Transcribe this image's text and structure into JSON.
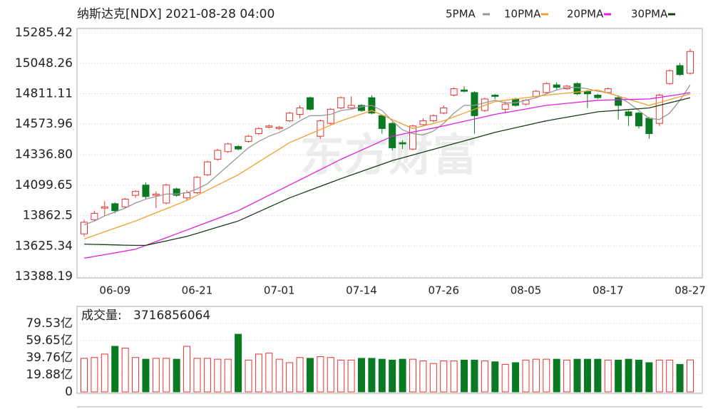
{
  "chart_data": [
    {
      "type": "candlestick",
      "title": "纳斯达克[NDX] 2021-08-28 04:00",
      "watermark": "东方财富",
      "categories": [
        null,
        null,
        null,
        "06-09",
        null,
        null,
        null,
        null,
        null,
        null,
        null,
        "06-21",
        null,
        null,
        null,
        null,
        null,
        null,
        null,
        "07-01",
        null,
        null,
        null,
        null,
        null,
        null,
        null,
        "07-14",
        null,
        null,
        null,
        null,
        null,
        null,
        null,
        "07-26",
        null,
        null,
        null,
        null,
        null,
        null,
        null,
        "08-05",
        null,
        null,
        null,
        null,
        null,
        null,
        null,
        "08-17",
        null,
        null,
        null,
        null,
        null,
        null,
        null,
        "08-27"
      ],
      "open": [
        13720,
        13830,
        13920,
        13955,
        13930,
        14020,
        14100,
        14020,
        13960,
        14070,
        14000,
        14040,
        14180,
        14300,
        14360,
        14400,
        14440,
        14500,
        14550,
        14540,
        14600,
        14650,
        14780,
        14480,
        14580,
        14700,
        14700,
        14720,
        14780,
        14640,
        14580,
        14430,
        14380,
        14570,
        14600,
        14660,
        14800,
        14840,
        14820,
        14680,
        14800,
        14690,
        14770,
        14730,
        14790,
        14820,
        14880,
        14850,
        14890,
        14830,
        14800,
        14820,
        14780,
        14670,
        14660,
        14620,
        14580,
        14890,
        15030,
        14970
      ],
      "high": [
        13830,
        13900,
        13975,
        13965,
        14000,
        14060,
        14120,
        14050,
        14110,
        14080,
        14060,
        14170,
        14290,
        14380,
        14430,
        14410,
        14490,
        14550,
        14570,
        14560,
        14670,
        14720,
        14790,
        14610,
        14700,
        14790,
        14790,
        14730,
        14800,
        14650,
        14590,
        14450,
        14570,
        14620,
        14650,
        14720,
        14860,
        14870,
        14830,
        14780,
        14810,
        14750,
        14780,
        14770,
        14840,
        14900,
        14900,
        14880,
        14900,
        14840,
        14810,
        14860,
        14800,
        14680,
        14670,
        14630,
        14810,
        15000,
        15050,
        15160
      ],
      "low": [
        13700,
        13815,
        13860,
        13880,
        13920,
        14000,
        13990,
        13920,
        13950,
        14010,
        13980,
        14030,
        14170,
        14290,
        14350,
        14370,
        14430,
        14490,
        14540,
        14530,
        14590,
        14620,
        14680,
        14460,
        14570,
        14690,
        14690,
        14670,
        14650,
        14500,
        14370,
        14380,
        14370,
        14560,
        14590,
        14650,
        14790,
        14820,
        14500,
        14670,
        14770,
        14660,
        14710,
        14720,
        14780,
        14810,
        14840,
        14840,
        14800,
        14700,
        14770,
        14810,
        14610,
        14560,
        14540,
        14460,
        14560,
        14880,
        14950,
        14960
      ],
      "close": [
        13810,
        13880,
        13930,
        13900,
        13990,
        14050,
        14010,
        14030,
        14100,
        14020,
        14040,
        14160,
        14280,
        14370,
        14420,
        14380,
        14480,
        14540,
        14560,
        14550,
        14660,
        14700,
        14690,
        14600,
        14690,
        14780,
        14720,
        14680,
        14660,
        14540,
        14390,
        14420,
        14560,
        14600,
        14640,
        14700,
        14850,
        14830,
        14640,
        14770,
        14790,
        14730,
        14720,
        14760,
        14830,
        14890,
        14860,
        14870,
        14810,
        14810,
        14780,
        14850,
        14720,
        14640,
        14560,
        14500,
        14800,
        14990,
        14960,
        15140
      ],
      "up_color": "#e8332f",
      "down_color": "#0a7a22",
      "series": [
        {
          "name": "5PMA",
          "color": "#999999",
          "values": [
            13790,
            13820,
            13860,
            13890,
            13920,
            13960,
            13990,
            14010,
            14030,
            14030,
            14040,
            14070,
            14110,
            14180,
            14250,
            14320,
            14390,
            14440,
            14480,
            14510,
            14550,
            14600,
            14640,
            14640,
            14650,
            14680,
            14690,
            14710,
            14720,
            14680,
            14600,
            14530,
            14500,
            14490,
            14520,
            14580,
            14660,
            14720,
            14720,
            14740,
            14760,
            14740,
            14740,
            14760,
            14780,
            14810,
            14840,
            14860,
            14860,
            14850,
            14830,
            14820,
            14790,
            14740,
            14680,
            14620,
            14610,
            14660,
            14760,
            14880
          ]
        },
        {
          "name": "10PMA",
          "color": "#f0a030",
          "values": [
            13680,
            13708,
            13736,
            13764,
            13792,
            13820,
            13852,
            13884,
            13916,
            13948,
            13980,
            14020,
            14060,
            14100,
            14140,
            14180,
            14230,
            14280,
            14330,
            14380,
            14430,
            14464,
            14498,
            14532,
            14566,
            14600,
            14627,
            14653,
            14680,
            14645,
            14610,
            14575,
            14540,
            14560,
            14580,
            14600,
            14630,
            14660,
            14690,
            14720,
            14750,
            14760,
            14770,
            14780,
            14790,
            14800,
            14808,
            14816,
            14824,
            14832,
            14840,
            14816,
            14792,
            14768,
            14744,
            14720,
            14742,
            14765,
            14788,
            14810
          ]
        },
        {
          "name": "20PMA",
          "color": "#e020e0",
          "values": [
            13530,
            13544,
            13558,
            13572,
            13586,
            13600,
            13630,
            13660,
            13690,
            13720,
            13750,
            13780,
            13810,
            13840,
            13870,
            13900,
            13940,
            13980,
            14020,
            14060,
            14100,
            14140,
            14180,
            14220,
            14260,
            14300,
            14336,
            14372,
            14408,
            14444,
            14480,
            14496,
            14512,
            14528,
            14544,
            14560,
            14578,
            14596,
            14614,
            14632,
            14650,
            14664,
            14678,
            14692,
            14706,
            14720,
            14728,
            14736,
            14744,
            14752,
            14760,
            14762,
            14764,
            14766,
            14768,
            14770,
            14782,
            14794,
            14806,
            14820
          ]
        },
        {
          "name": "30PMA",
          "color": "#1a3a1a",
          "values": [
            13640,
            13638,
            13636,
            13634,
            13632,
            13630,
            13630,
            13648,
            13665,
            13683,
            13700,
            13724,
            13748,
            13772,
            13796,
            13820,
            13856,
            13892,
            13928,
            13964,
            14000,
            14030,
            14060,
            14090,
            14120,
            14150,
            14178,
            14206,
            14234,
            14262,
            14290,
            14312,
            14334,
            14356,
            14378,
            14400,
            14422,
            14444,
            14466,
            14488,
            14510,
            14528,
            14546,
            14564,
            14582,
            14600,
            14614,
            14628,
            14642,
            14656,
            14670,
            14676,
            14682,
            14688,
            14694,
            14700,
            14720,
            14740,
            14760,
            14780
          ]
        }
      ],
      "ylim": [
        13388.19,
        15285.42
      ],
      "yticks": [
        13388.19,
        13625.34,
        13862.5,
        {
          "value": 14099.65,
          "label": "14099.65"
        },
        {
          "value": 14336.8,
          "label": "14336.80"
        },
        14573.96,
        14811.11,
        15048.26,
        15285.42
      ],
      "grid": true
    },
    {
      "type": "bar",
      "title": "成交量:",
      "latest_volume": 3716856064,
      "values": [
        39,
        40,
        44,
        53,
        51,
        40,
        38,
        39,
        39,
        38,
        53,
        39,
        39,
        38,
        38,
        67,
        37,
        44,
        45,
        38,
        34,
        40,
        39,
        41,
        40,
        37,
        37,
        39,
        39,
        38,
        37,
        38,
        38,
        36,
        33,
        36,
        36,
        37,
        37,
        36,
        35,
        32,
        34,
        37,
        38,
        38,
        38,
        37,
        38,
        38,
        38,
        37,
        37,
        38,
        37,
        34,
        37,
        37,
        32,
        37.17
      ],
      "ylim": [
        0,
        79.53
      ],
      "yticks": [
        0,
        {
          "value": 19.88,
          "label": "19.88亿"
        },
        {
          "value": 39.76,
          "label": "39.76亿"
        },
        {
          "value": 59.65,
          "label": "59.65亿"
        },
        {
          "value": 79.53,
          "label": "79.53亿"
        }
      ]
    }
  ]
}
